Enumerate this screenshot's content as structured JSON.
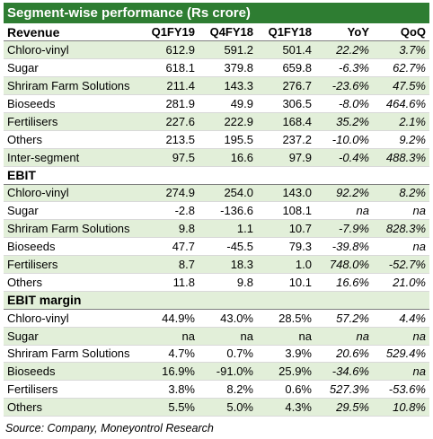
{
  "title": "Segment-wise performance (Rs crore)",
  "columns": [
    "Q1FY19",
    "Q4FY18",
    "Q1FY18",
    "YoY",
    "QoQ"
  ],
  "sections": [
    {
      "name": "Revenue",
      "rows": [
        [
          "Chloro-vinyl",
          "612.9",
          "591.2",
          "501.4",
          "22.2%",
          "3.7%"
        ],
        [
          "Sugar",
          "618.1",
          "379.8",
          "659.8",
          "-6.3%",
          "62.7%"
        ],
        [
          "Shriram Farm Solutions",
          "211.4",
          "143.3",
          "276.7",
          "-23.6%",
          "47.5%"
        ],
        [
          "Bioseeds",
          "281.9",
          "49.9",
          "306.5",
          "-8.0%",
          "464.6%"
        ],
        [
          "Fertilisers",
          "227.6",
          "222.9",
          "168.4",
          "35.2%",
          "2.1%"
        ],
        [
          "Others",
          "213.5",
          "195.5",
          "237.2",
          "-10.0%",
          "9.2%"
        ],
        [
          "Inter-segment",
          "97.5",
          "16.6",
          "97.9",
          "-0.4%",
          "488.3%"
        ]
      ]
    },
    {
      "name": "EBIT",
      "rows": [
        [
          "Chloro-vinyl",
          "274.9",
          "254.0",
          "143.0",
          "92.2%",
          "8.2%"
        ],
        [
          "Sugar",
          "-2.8",
          "-136.6",
          "108.1",
          "na",
          "na"
        ],
        [
          "Shriram Farm Solutions",
          "9.8",
          "1.1",
          "10.7",
          "-7.9%",
          "828.3%"
        ],
        [
          "Bioseeds",
          "47.7",
          "-45.5",
          "79.3",
          "-39.8%",
          "na"
        ],
        [
          "Fertilisers",
          "8.7",
          "18.3",
          "1.0",
          "748.0%",
          "-52.7%"
        ],
        [
          "Others",
          "11.8",
          "9.8",
          "10.1",
          "16.6%",
          "21.0%"
        ]
      ]
    },
    {
      "name": "EBIT margin",
      "rows": [
        [
          "Chloro-vinyl",
          "44.9%",
          "43.0%",
          "28.5%",
          "57.2%",
          "4.4%"
        ],
        [
          "Sugar",
          "na",
          "na",
          "na",
          "na",
          "na"
        ],
        [
          "Shriram Farm Solutions",
          "4.7%",
          "0.7%",
          "3.9%",
          "20.6%",
          "529.4%"
        ],
        [
          "Bioseeds",
          "16.9%",
          "-91.0%",
          "25.9%",
          "-34.6%",
          "na"
        ],
        [
          "Fertilisers",
          "3.8%",
          "8.2%",
          "0.6%",
          "527.3%",
          "-53.6%"
        ],
        [
          "Others",
          "5.5%",
          "5.0%",
          "4.3%",
          "29.5%",
          "10.8%"
        ]
      ]
    }
  ],
  "source": "Source: Company, Moneyontrol Research",
  "colors": {
    "title_bg": "#2e7d32",
    "title_fg": "#ffffff",
    "row_shade": "#e2efd9"
  }
}
